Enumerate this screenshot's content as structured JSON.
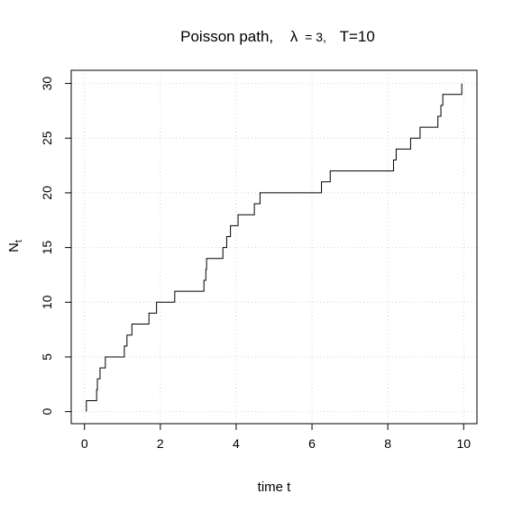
{
  "chart_data": {
    "type": "line",
    "line_style": "step",
    "title_parts": {
      "prefix": "Poisson path,",
      "lambda_symbol": "λ",
      "lambda_value": "= 3,",
      "T_part": "T=10"
    },
    "xlabel": "time t",
    "ylabel_main": "N",
    "ylabel_sub": "t",
    "xlim": [
      -0.35,
      10.35
    ],
    "ylim": [
      -1.1,
      31.2
    ],
    "x_ticks": [
      0,
      2,
      4,
      6,
      8,
      10
    ],
    "y_ticks": [
      0,
      5,
      10,
      15,
      20,
      25,
      30
    ],
    "x_tick_labels": [
      "0",
      "2",
      "4",
      "6",
      "8",
      "10"
    ],
    "y_tick_labels": [
      "0",
      "5",
      "10",
      "15",
      "20",
      "25",
      "30"
    ],
    "grid": true,
    "series_color": "#000000",
    "grid_color": "#d3d3d3",
    "jump_times": [
      0.05,
      0.32,
      0.34,
      0.41,
      0.55,
      1.05,
      1.12,
      1.25,
      1.7,
      1.9,
      2.38,
      3.15,
      3.2,
      3.22,
      3.65,
      3.75,
      3.85,
      4.05,
      4.48,
      4.63,
      6.25,
      6.48,
      8.15,
      8.22,
      8.6,
      8.85,
      9.32,
      9.4,
      9.45,
      9.95
    ],
    "end_time": 9.95
  }
}
